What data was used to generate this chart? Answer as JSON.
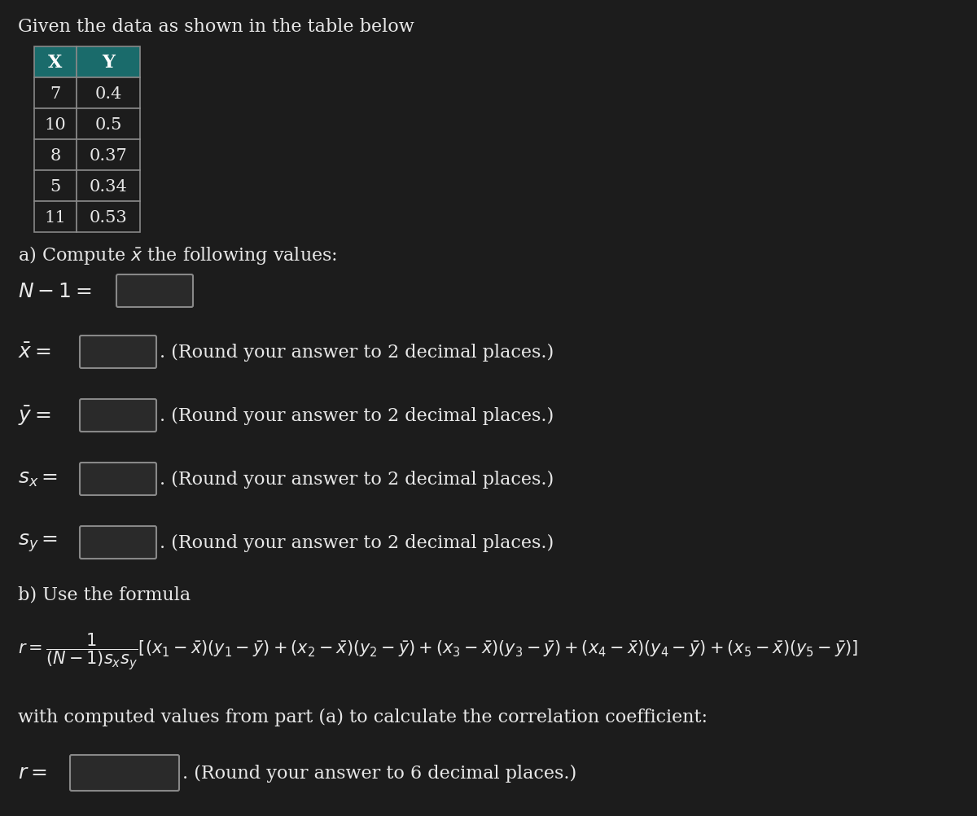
{
  "title": "Given the data as shown in the table below",
  "table_headers": [
    "X",
    "Y"
  ],
  "table_data": [
    [
      "7",
      "0.4"
    ],
    [
      "10",
      "0.5"
    ],
    [
      "8",
      "0.37"
    ],
    [
      "5",
      "0.34"
    ],
    [
      "11",
      "0.53"
    ]
  ],
  "header_bg": "#1a6b6b",
  "header_text": "#ffffff",
  "table_bg": "#1c1c1c",
  "table_border": "#888888",
  "cell_text": "#e8e8e8",
  "bg_color": "#1c1c1c",
  "text_color": "#e8e8e8",
  "box_facecolor": "#2a2a2a",
  "box_edgecolor": "#888888",
  "font_size_main": 16,
  "font_size_table": 15,
  "round2": ". (Round your answer to 2 decimal places.)",
  "round6": ". (Round your answer to 6 decimal places.)"
}
